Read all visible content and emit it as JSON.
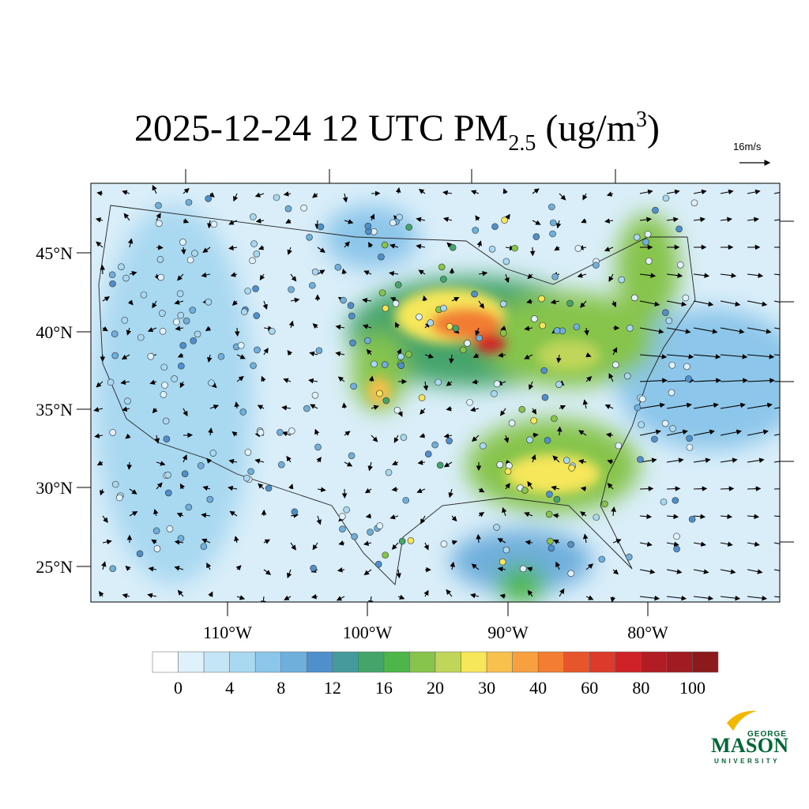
{
  "title": {
    "text": "2025-12-24 12 UTC PM",
    "subscript": "2.5",
    "units": " (ug/m",
    "superscript": "3",
    "close": ")"
  },
  "wind_reference": "16m/s",
  "lat_labels": [
    "45°N",
    "40°N",
    "35°N",
    "30°N",
    "25°N"
  ],
  "lon_labels": [
    "110°W",
    "100°W",
    "90°W",
    "80°W"
  ],
  "colorbar": {
    "ticks": [
      0,
      4,
      8,
      12,
      16,
      20,
      30,
      40,
      60,
      80,
      100
    ],
    "colors": [
      "#ffffff",
      "#dff1fa",
      "#c3e5f6",
      "#a9d8f1",
      "#8cc6ea",
      "#6fafdc",
      "#4f8fcb",
      "#469a9c",
      "#45a46a",
      "#4db64b",
      "#86c44c",
      "#bfd65a",
      "#f6e65a",
      "#f8c04c",
      "#f6a040",
      "#f27d33",
      "#e6552c",
      "#dc3a2a",
      "#cf2128",
      "#b21c24",
      "#a11b22",
      "#8c1a1d"
    ]
  },
  "logo": {
    "top": "GEORGE",
    "main": "MASON",
    "bottom": "UNIVERSITY"
  }
}
